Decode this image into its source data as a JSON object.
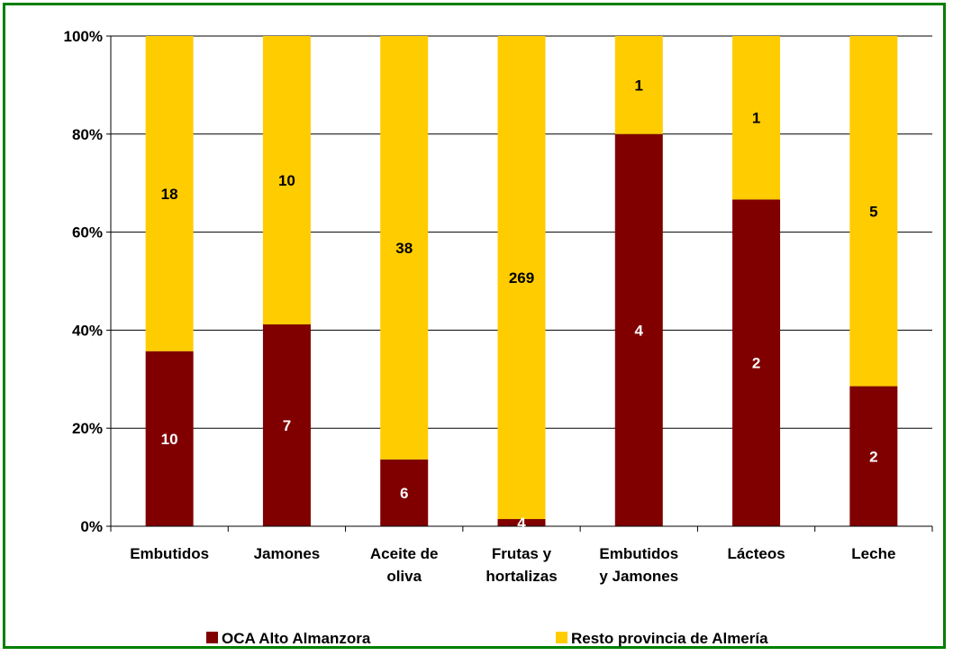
{
  "chart_data": {
    "type": "bar",
    "stacked": "percent",
    "categories": [
      [
        "Embutidos"
      ],
      [
        "Jamones"
      ],
      [
        "Aceite de",
        "oliva"
      ],
      [
        "Frutas y",
        "hortalizas"
      ],
      [
        "Embutidos",
        "y Jamones"
      ],
      [
        "Lácteos"
      ],
      [
        "Leche"
      ]
    ],
    "series": [
      {
        "name": "OCA Alto Almanzora",
        "color": "#800000",
        "label_color": "#ffffff",
        "values": [
          10,
          7,
          6,
          4,
          4,
          2,
          2
        ]
      },
      {
        "name": "Resto provincia de Almería",
        "color": "#ffcc00",
        "label_color": "#000000",
        "values": [
          18,
          10,
          38,
          269,
          1,
          1,
          5
        ]
      }
    ],
    "yticks": [
      "0%",
      "20%",
      "40%",
      "60%",
      "80%",
      "100%"
    ],
    "ylim": [
      0,
      100
    ],
    "grid": true,
    "legend_position": "bottom"
  }
}
